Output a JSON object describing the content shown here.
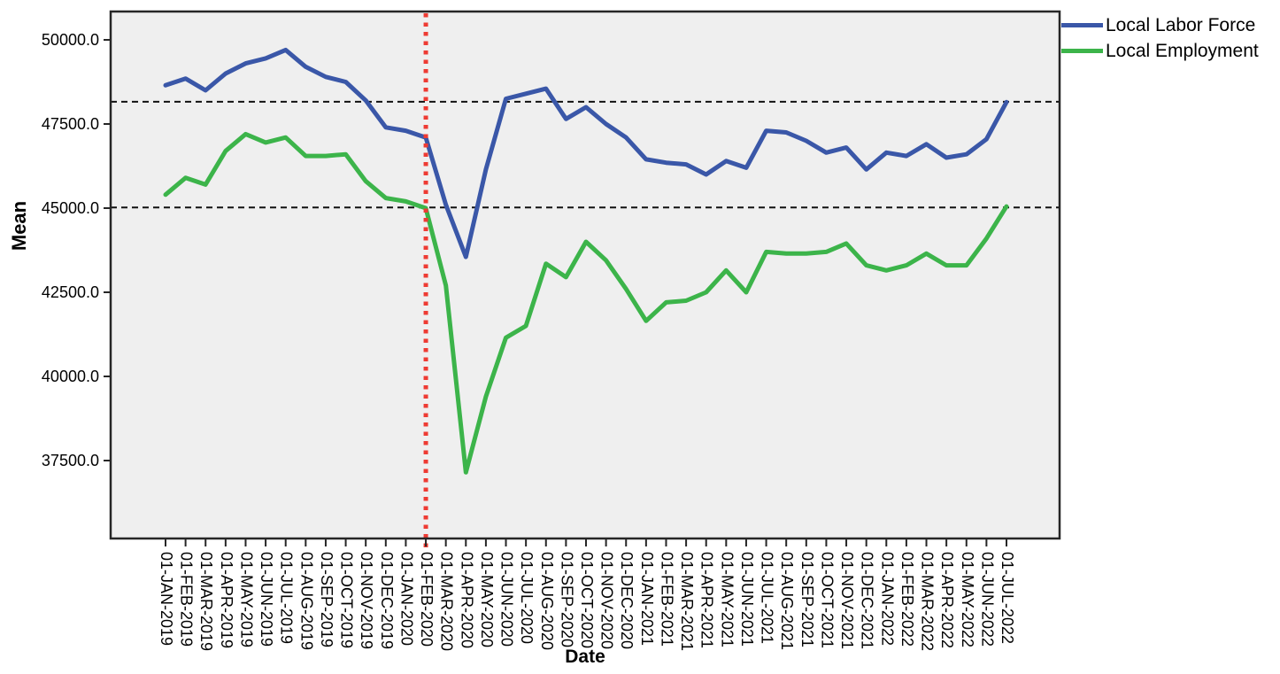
{
  "axes": {
    "x_label": "Date",
    "y_label": "Mean"
  },
  "legend": {
    "items": [
      {
        "label": "Local Labor Force",
        "color": "#3A57A8"
      },
      {
        "label": "Local Employment",
        "color": "#3CB44A"
      }
    ]
  },
  "chart_data": {
    "type": "line",
    "title": "",
    "xlabel": "Date",
    "ylabel": "Mean",
    "plot_bg": "#EFEFEF",
    "frame_color": "#262626",
    "grid": false,
    "legend_position": "top-right-outside",
    "ylim": [
      35200,
      50850
    ],
    "y_ticks": [
      50000,
      47500,
      45000,
      42500,
      40000,
      37500
    ],
    "y_tick_labels": [
      "50000.0",
      "47500.0",
      "45000.0",
      "42500.0",
      "40000.0",
      "37500.0"
    ],
    "x_categories": [
      "01-JAN-2019",
      "01-FEB-2019",
      "01-MAR-2019",
      "01-APR-2019",
      "01-MAY-2019",
      "01-JUN-2019",
      "01-JUL-2019",
      "01-AUG-2019",
      "01-SEP-2019",
      "01-OCT-2019",
      "01-NOV-2019",
      "01-DEC-2019",
      "01-JAN-2020",
      "01-FEB-2020",
      "01-MAR-2020",
      "01-APR-2020",
      "01-MAY-2020",
      "01-JUN-2020",
      "01-JUL-2020",
      "01-AUG-2020",
      "01-SEP-2020",
      "01-OCT-2020",
      "01-NOV-2020",
      "01-DEC-2020",
      "01-JAN-2021",
      "01-FEB-2021",
      "01-MAR-2021",
      "01-APR-2021",
      "01-MAY-2021",
      "01-JUN-2021",
      "01-JUL-2021",
      "01-AUG-2021",
      "01-SEP-2021",
      "01-OCT-2021",
      "01-NOV-2021",
      "01-DEC-2021",
      "01-JAN-2022",
      "01-FEB-2022",
      "01-MAR-2022",
      "01-APR-2022",
      "01-MAY-2022",
      "01-JUN-2022",
      "01-JUL-2022"
    ],
    "series": [
      {
        "name": "Local Labor Force",
        "color": "#3A57A8",
        "values": [
          48650,
          48850,
          48500,
          49000,
          49300,
          49450,
          49700,
          49200,
          48900,
          48750,
          48200,
          47400,
          47300,
          47100,
          45100,
          43550,
          46150,
          48250,
          48400,
          48550,
          47650,
          48000,
          47500,
          47100,
          46450,
          46350,
          46300,
          46000,
          46400,
          46200,
          47300,
          47250,
          47000,
          46650,
          46800,
          46150,
          46650,
          46550,
          46900,
          46500,
          46600,
          47050,
          48150
        ]
      },
      {
        "name": "Local Employment",
        "color": "#3CB44A",
        "values": [
          45400,
          45900,
          45700,
          46700,
          47200,
          46950,
          47100,
          46550,
          46550,
          46600,
          45800,
          45300,
          45200,
          45000,
          42700,
          37150,
          39400,
          41150,
          41500,
          43350,
          42950,
          44000,
          43450,
          42600,
          41650,
          42200,
          42250,
          42500,
          43150,
          42500,
          43700,
          43650,
          43650,
          43700,
          43950,
          43300,
          43150,
          43300,
          43650,
          43300,
          43300,
          44100,
          45050
        ]
      }
    ],
    "reference_lines_horizontal": [
      {
        "value": 48160,
        "style": "dashed",
        "color": "#111111"
      },
      {
        "value": 45020,
        "style": "dashed",
        "color": "#111111"
      }
    ],
    "reference_line_vertical": {
      "x_category": "01-FEB-2020",
      "style": "dotted",
      "color": "#EE3B33"
    }
  }
}
